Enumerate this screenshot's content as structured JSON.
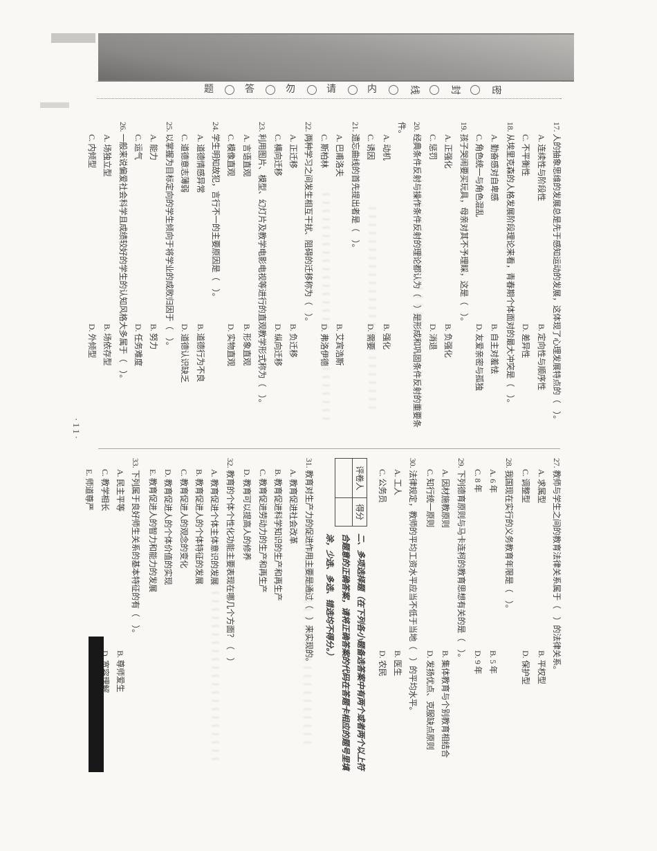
{
  "scan": {
    "page_number": "·11·"
  },
  "seal_line": {
    "chars": [
      {
        "ch": "密",
        "rotated": false
      },
      {
        "ch": "封",
        "rotated": false
      },
      {
        "ch": "线",
        "rotated": false
      },
      {
        "ch": "内",
        "rotated": true
      },
      {
        "ch": "请",
        "rotated": true
      },
      {
        "ch": "勿",
        "rotated": true
      },
      {
        "ch": "答",
        "rotated": true
      },
      {
        "ch": "题",
        "rotated": true
      }
    ]
  },
  "score_table": {
    "reviewer": "评卷人",
    "score": "得分"
  },
  "section2": {
    "heading": "二、多项选择题",
    "instructions": "（在下列各小题备选答案中有两个或者两个以上符合题意的正确答案，请将正确答案的代码在答题卡相应的题号里填涂，少选、多选、错选均不得分。）"
  },
  "left_page_questions": [
    {
      "num": "17.",
      "stem": "人的抽象思维的发展总是先于感知运动的发展，这体现了心理发展特点的（　）。",
      "options_per_line": 2,
      "options": [
        {
          "label": "A.",
          "text": "连续性与阶段性"
        },
        {
          "label": "B.",
          "text": "定向性与顺序性"
        },
        {
          "label": "C.",
          "text": "不平衡性"
        },
        {
          "label": "D.",
          "text": "差异性"
        }
      ]
    },
    {
      "num": "18.",
      "stem": "从埃里克森的人格发展阶段理论来看，青春期个体面对的最大冲突是（　）。",
      "options_per_line": 2,
      "options": [
        {
          "label": "A.",
          "text": "勤奋感对自卑感"
        },
        {
          "label": "B.",
          "text": "自主对羞怯"
        },
        {
          "label": "C.",
          "text": "角色统一与角色混乱"
        },
        {
          "label": "D.",
          "text": "友爱亲密与孤独"
        }
      ]
    },
    {
      "num": "19.",
      "stem": "孩子哭闹要买玩具，母亲对其不予理睬，这是（　）。",
      "options_per_line": 2,
      "options": [
        {
          "label": "A.",
          "text": "正强化"
        },
        {
          "label": "B.",
          "text": "负强化"
        },
        {
          "label": "C.",
          "text": "惩罚"
        },
        {
          "label": "D.",
          "text": "消退"
        }
      ]
    },
    {
      "num": "20.",
      "stem": "经典条件反射与操作条件反射的理论都认为（　）是形成和巩固条件反射的重要条件。",
      "options_per_line": 2,
      "options": [
        {
          "label": "A.",
          "text": "动机"
        },
        {
          "label": "B.",
          "text": "强化"
        },
        {
          "label": "C.",
          "text": "诱因"
        },
        {
          "label": "D.",
          "text": "需要"
        }
      ]
    },
    {
      "num": "21.",
      "stem": "遗忘曲线的首先提出者是（　）。",
      "options_per_line": 2,
      "options": [
        {
          "label": "A.",
          "text": "巴甫洛夫"
        },
        {
          "label": "B.",
          "text": "艾宾浩斯"
        },
        {
          "label": "C.",
          "text": "斯柏林"
        },
        {
          "label": "D.",
          "text": "弗洛伊德"
        }
      ]
    },
    {
      "num": "22.",
      "stem": "两种学习之间发生相互干扰、阻碍的迁移称为（　）。",
      "options_per_line": 2,
      "options": [
        {
          "label": "A.",
          "text": "正迁移"
        },
        {
          "label": "B.",
          "text": "负迁移"
        },
        {
          "label": "C.",
          "text": "横向迁移"
        },
        {
          "label": "D.",
          "text": "纵向迁移"
        }
      ]
    },
    {
      "num": "23.",
      "stem": "利用图片、模型、幻灯片及教学电影电视等进行的直观教学形式称为（　）。",
      "options_per_line": 2,
      "options": [
        {
          "label": "A.",
          "text": "言语直观"
        },
        {
          "label": "B.",
          "text": "形象直观"
        },
        {
          "label": "C.",
          "text": "模像直观"
        },
        {
          "label": "D.",
          "text": "实物直观"
        }
      ]
    },
    {
      "num": "24.",
      "stem": "学生明知故犯，言行不一的主要原因是（　）。",
      "options_per_line": 2,
      "options": [
        {
          "label": "A.",
          "text": "道德情感异常"
        },
        {
          "label": "B.",
          "text": "道德行为不良"
        },
        {
          "label": "C.",
          "text": "道德意志薄弱"
        },
        {
          "label": "D.",
          "text": "道德认识缺乏"
        }
      ]
    },
    {
      "num": "25.",
      "stem": "以掌握为目标定向的学生倾向于将学业的成败归因于（　）。",
      "options_per_line": 2,
      "options": [
        {
          "label": "A.",
          "text": "能力"
        },
        {
          "label": "B.",
          "text": "努力"
        },
        {
          "label": "C.",
          "text": "运气"
        },
        {
          "label": "D.",
          "text": "任务难度"
        }
      ]
    },
    {
      "num": "26.",
      "stem": "一般来说偏爱社会科学且成绩较好的学生的认知风格大多属于（　）。",
      "options_per_line": 2,
      "options": [
        {
          "label": "A.",
          "text": "场独立型"
        },
        {
          "label": "B.",
          "text": "场依存型"
        },
        {
          "label": "C.",
          "text": "内倾型"
        },
        {
          "label": "D.",
          "text": "外倾型"
        }
      ]
    }
  ],
  "right_page_questions_before_section": [
    {
      "num": "27.",
      "stem": "教师与学生之间的教育法律关系属于（　）的法律关系。",
      "options_per_line": 2,
      "options": [
        {
          "label": "A.",
          "text": "求属型"
        },
        {
          "label": "B.",
          "text": "平权型"
        },
        {
          "label": "C.",
          "text": "调整型"
        },
        {
          "label": "D.",
          "text": "保护型"
        }
      ]
    },
    {
      "num": "28.",
      "stem": "我国现在实行的义务教育年限是（　）。",
      "options_per_line": 2,
      "options": [
        {
          "label": "A.",
          "text": "6 年"
        },
        {
          "label": "B.",
          "text": "5 年"
        },
        {
          "label": "C.",
          "text": "8 年"
        },
        {
          "label": "D.",
          "text": "9 年"
        }
      ]
    },
    {
      "num": "29.",
      "stem": "下列德育原则与马卡连柯的教育思想有关的是（　）。",
      "options_per_line": 2,
      "options": [
        {
          "label": "A.",
          "text": "因材施教原则"
        },
        {
          "label": "B.",
          "text": "集体教育与个别教育相结合"
        },
        {
          "label": "C.",
          "text": "知行统一原则"
        },
        {
          "label": "D.",
          "text": "发扬优点、克服缺点原则"
        }
      ]
    },
    {
      "num": "30.",
      "stem": "法律规定，教师的平均工资水平应当不低于当地（　）的平均水平。",
      "options_per_line": 2,
      "options": [
        {
          "label": "A.",
          "text": "工人"
        },
        {
          "label": "B.",
          "text": "医生"
        },
        {
          "label": "C.",
          "text": "公务员"
        },
        {
          "label": "D.",
          "text": "农民"
        }
      ]
    }
  ],
  "right_page_questions_after_section": [
    {
      "num": "31.",
      "stem": "教育对生产力的促进作用主要是通过（　）来实现的。",
      "options_per_line": 1,
      "options": [
        {
          "label": "A.",
          "text": "教育促进社会改革"
        },
        {
          "label": "B.",
          "text": "教育促进科学知识的生产和再生产"
        },
        {
          "label": "C.",
          "text": "教育促进劳动力的生产和再生产"
        },
        {
          "label": "D.",
          "text": "教育可以提高人的修养"
        }
      ]
    },
    {
      "num": "32.",
      "stem": "教育的个体个性化功能主要表现在哪几个方面？（　）",
      "options_per_line": 1,
      "options": [
        {
          "label": "A.",
          "text": "教育促进个体主体意识的发展"
        },
        {
          "label": "B.",
          "text": "教育促进人的个体特征的发展"
        },
        {
          "label": "C.",
          "text": "教育促进人的观念的变化"
        },
        {
          "label": "D.",
          "text": "教育促进人的个体价值的实现"
        },
        {
          "label": "E.",
          "text": "教育促进人的智力和能力的发展"
        }
      ]
    },
    {
      "num": "33.",
      "stem": "下列属于良好师生关系的基本特征的有（　）。",
      "options_per_line": 2,
      "options": [
        {
          "label": "A.",
          "text": "民主平等"
        },
        {
          "label": "B.",
          "text": "尊师爱生"
        },
        {
          "label": "C.",
          "text": "教学相长"
        },
        {
          "label": "D.",
          "text": "宽容理解"
        },
        {
          "label": "E.",
          "text": "师道尊严"
        }
      ]
    }
  ]
}
